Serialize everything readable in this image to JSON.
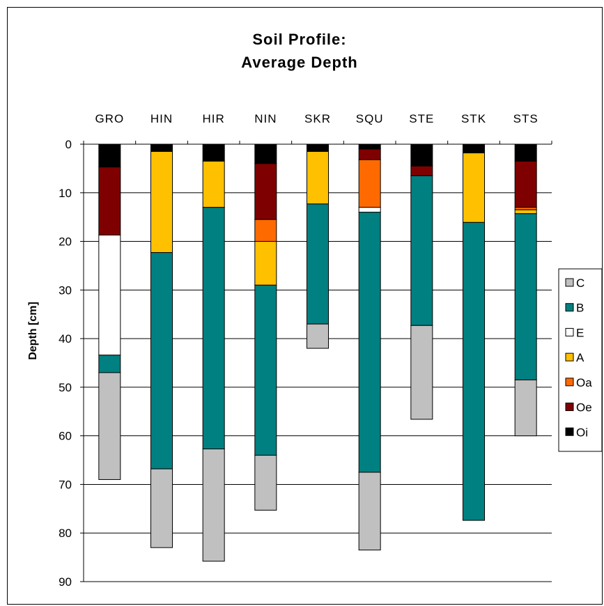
{
  "chart_data": {
    "type": "bar",
    "stacked": true,
    "title": [
      "Soil Profile:",
      "Average Depth"
    ],
    "xlabel": "",
    "ylabel": "Depth [cm]",
    "ylim": [
      0,
      90
    ],
    "y_inverted": true,
    "x_axis_position": "top",
    "yticks": [
      0,
      10,
      20,
      30,
      40,
      50,
      60,
      70,
      80,
      90
    ],
    "grid": "horizontal major gridlines",
    "legend_position": "right",
    "categories": [
      "GRO",
      "HIN",
      "HIR",
      "NIN",
      "SKR",
      "SQU",
      "STE",
      "STK",
      "STS"
    ],
    "legend_order": [
      "C",
      "B",
      "E",
      "A",
      "Oa",
      "Oe",
      "Oi"
    ],
    "series": [
      {
        "name": "Oi",
        "color": "#000000",
        "values": [
          4.7,
          1.5,
          3.5,
          4,
          1.5,
          1,
          4.5,
          1.8,
          3.5
        ]
      },
      {
        "name": "Oe",
        "color": "#7f0000",
        "values": [
          14,
          0,
          0,
          11.5,
          0,
          2.2,
          2,
          0,
          9.5
        ]
      },
      {
        "name": "Oa",
        "color": "#ff6a00",
        "values": [
          0,
          0,
          0,
          4.5,
          0,
          9.8,
          0,
          0,
          0.5
        ]
      },
      {
        "name": "A",
        "color": "#ffc000",
        "values": [
          0,
          20.8,
          9.5,
          9,
          10.8,
          0,
          0,
          14.3,
          0.8
        ]
      },
      {
        "name": "E",
        "color": "#ffffff",
        "values": [
          24.7,
          0,
          0,
          0,
          0,
          1,
          0,
          0,
          0
        ]
      },
      {
        "name": "B",
        "color": "#008080",
        "values": [
          3.6,
          44.5,
          49.7,
          35,
          24.7,
          53.5,
          30.8,
          61.3,
          34.2
        ]
      },
      {
        "name": "C",
        "color": "#c0c0c0",
        "values": [
          22,
          16.2,
          23.1,
          11.3,
          5,
          16,
          19.3,
          0,
          11.5
        ]
      }
    ]
  }
}
